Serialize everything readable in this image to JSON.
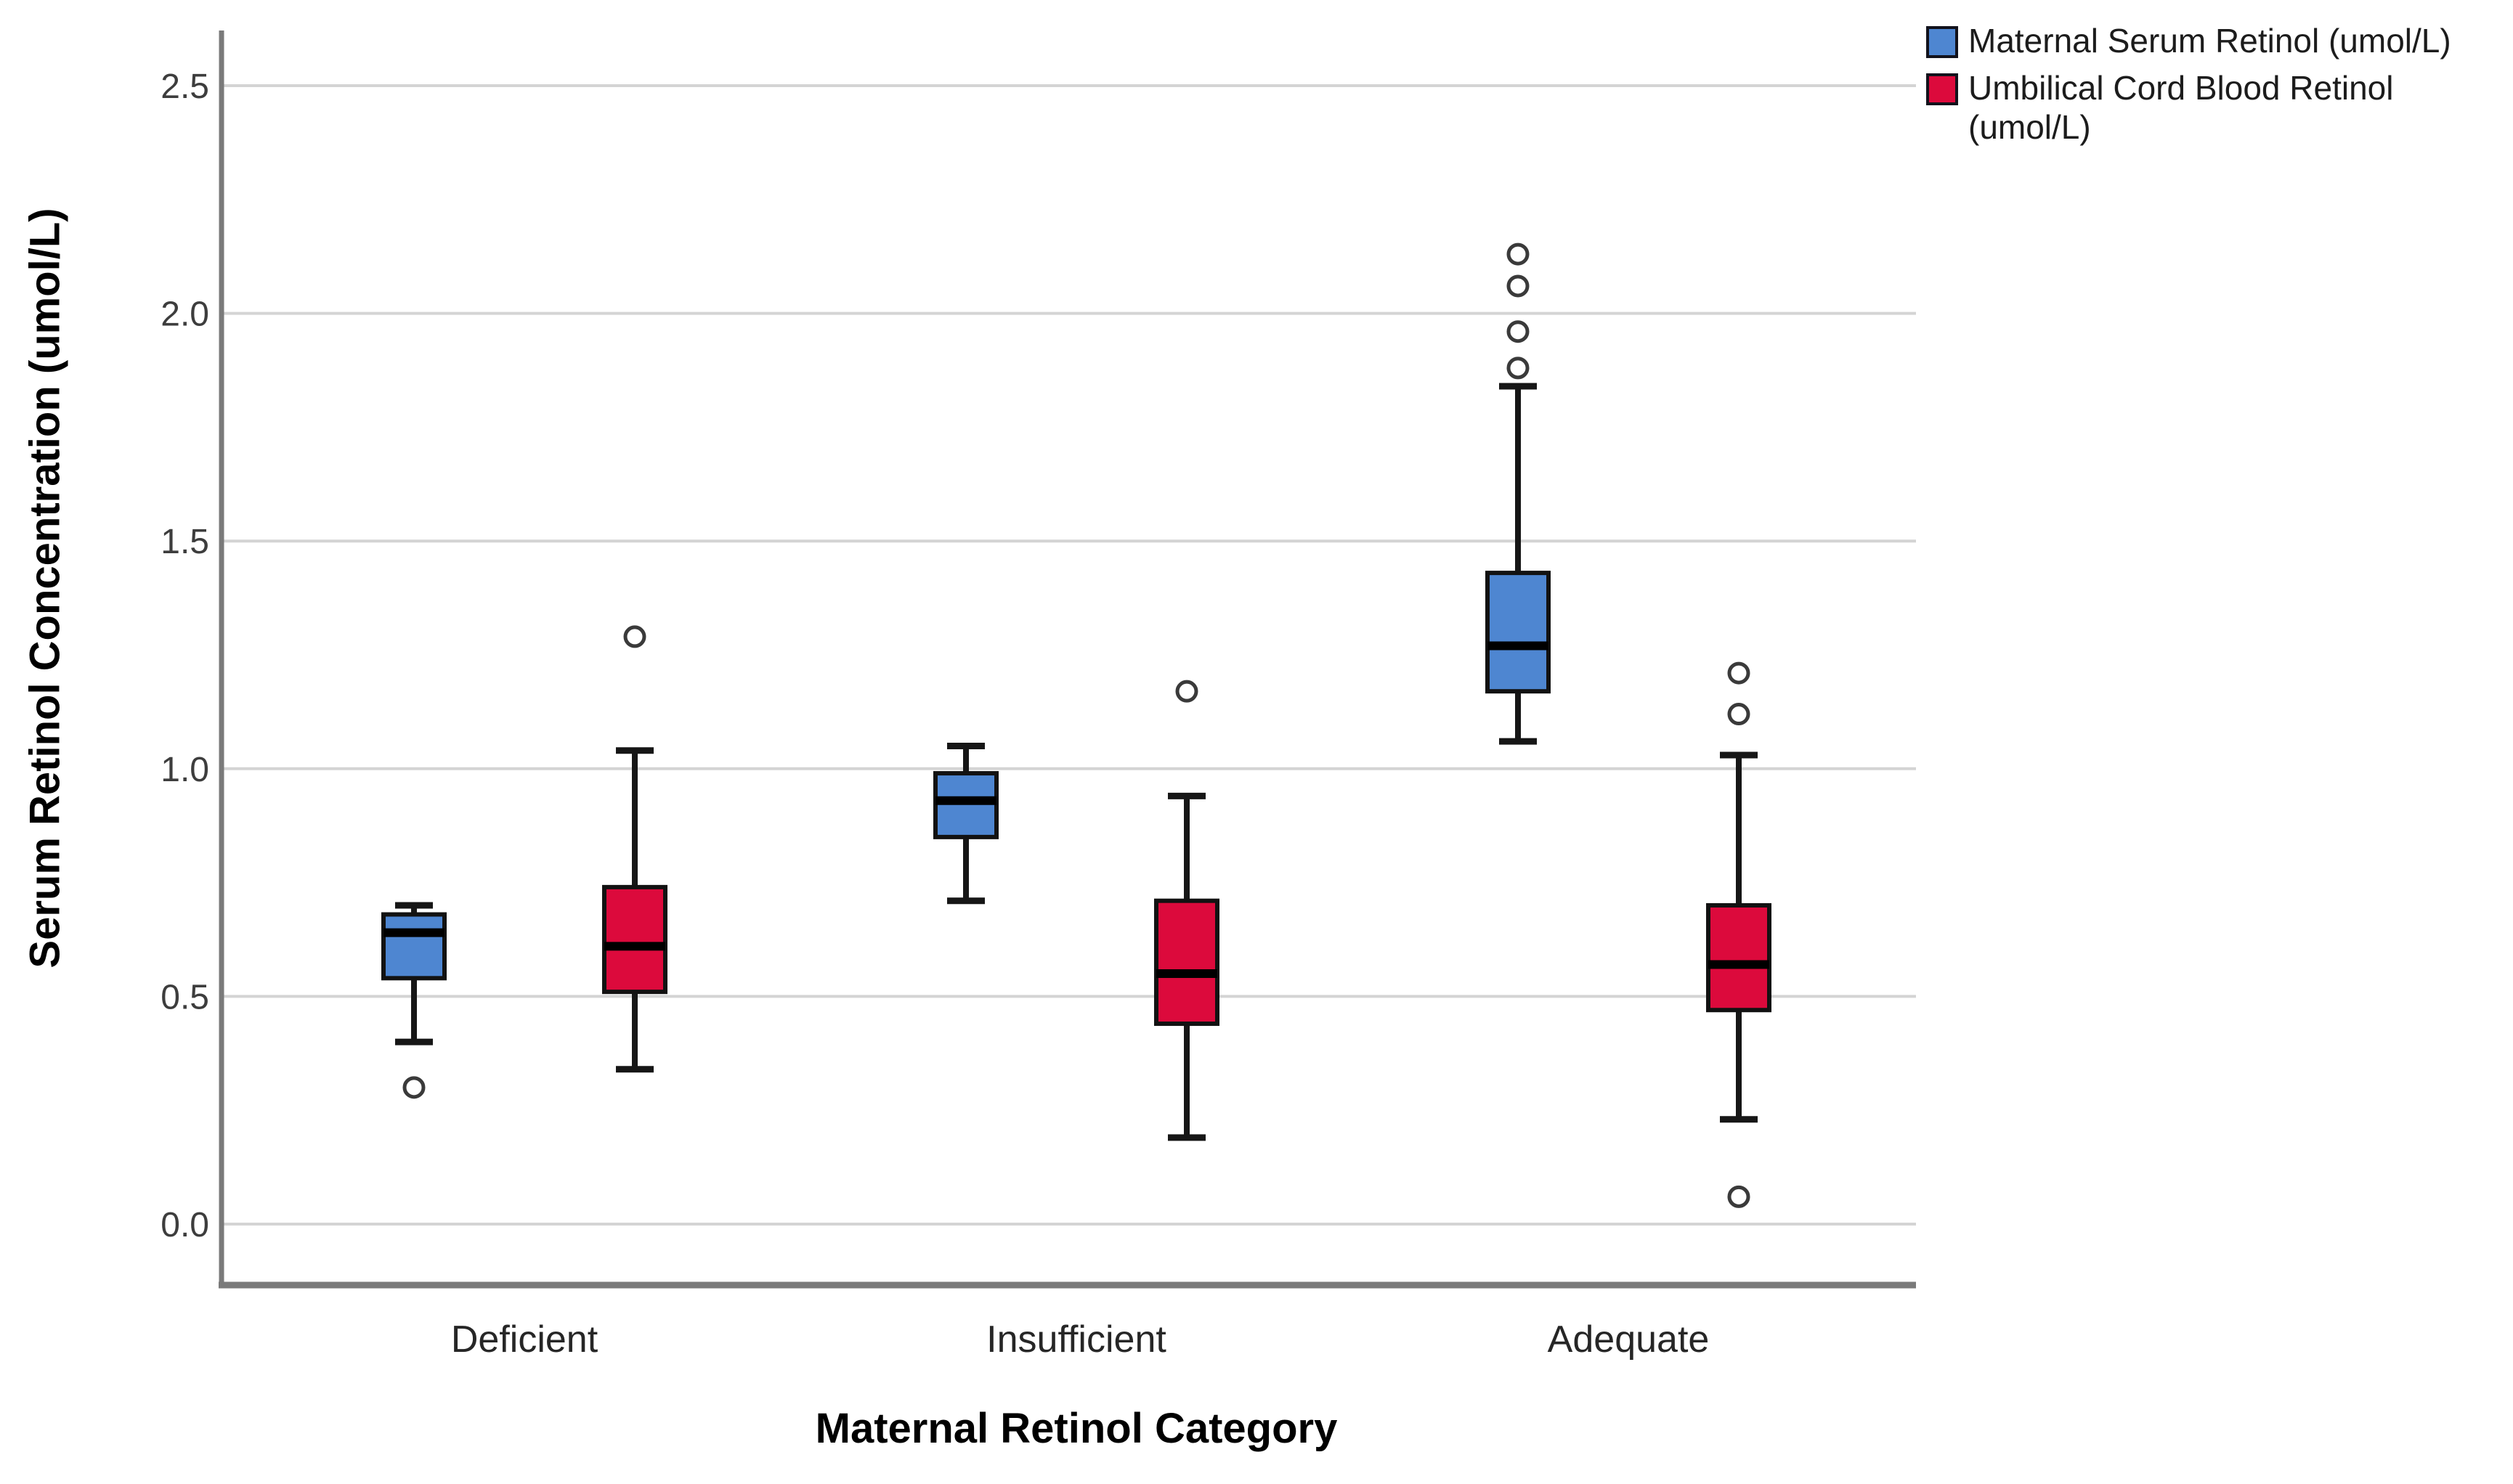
{
  "chart_data": {
    "type": "boxplot",
    "title": "",
    "xlabel": "Maternal Retinol Category",
    "ylabel": "Serum Retinol Concentration (umol/L)",
    "categories": [
      "Deficient",
      "Insufficient",
      "Adequate"
    ],
    "y_ticks": [
      {
        "label": "0.0",
        "value": 0.0
      },
      {
        "label": "0.5",
        "value": 0.5
      },
      {
        "label": "1.0",
        "value": 1.0
      },
      {
        "label": "1.5",
        "value": 1.5
      },
      {
        "label": "2.0",
        "value": 2.0
      },
      {
        "label": "2.5",
        "value": 2.5
      }
    ],
    "ylim": [
      -0.13,
      2.62
    ],
    "grid": "horizontal",
    "legend_position": "top-right",
    "series": [
      {
        "name": "Maternal Serum Retinol (umol/L)",
        "color": "#4E86D1",
        "boxes": [
          {
            "category": "Deficient",
            "whisker_low": 0.4,
            "q1": 0.54,
            "median": 0.64,
            "q3": 0.68,
            "whisker_high": 0.7,
            "outliers": [
              0.3
            ]
          },
          {
            "category": "Insufficient",
            "whisker_low": 0.71,
            "q1": 0.85,
            "median": 0.93,
            "q3": 0.99,
            "whisker_high": 1.05,
            "outliers": []
          },
          {
            "category": "Adequate",
            "whisker_low": 1.06,
            "q1": 1.17,
            "median": 1.27,
            "q3": 1.43,
            "whisker_high": 1.84,
            "outliers": [
              1.88,
              1.96,
              2.06,
              2.13
            ]
          }
        ]
      },
      {
        "name": "Umbilical Cord Blood Retinol (umol/L)",
        "color": "#DC0A3C",
        "boxes": [
          {
            "category": "Deficient",
            "whisker_low": 0.34,
            "q1": 0.51,
            "median": 0.61,
            "q3": 0.74,
            "whisker_high": 1.04,
            "outliers": [
              1.29
            ]
          },
          {
            "category": "Insufficient",
            "whisker_low": 0.19,
            "q1": 0.44,
            "median": 0.55,
            "q3": 0.71,
            "whisker_high": 0.94,
            "outliers": [
              1.17
            ]
          },
          {
            "category": "Adequate",
            "whisker_low": 0.23,
            "q1": 0.47,
            "median": 0.57,
            "q3": 0.7,
            "whisker_high": 1.03,
            "outliers": [
              1.12,
              1.21,
              0.06
            ]
          }
        ]
      }
    ],
    "colors": {
      "gridline": "#d4d4d4",
      "axis": "#7a7a7a",
      "box_border": "#121212",
      "median": "#000000",
      "whisker": "#161616",
      "outlier_stroke": "#3a3a3a",
      "tick_text": "#3d3d3d",
      "category_text": "#262626"
    }
  }
}
